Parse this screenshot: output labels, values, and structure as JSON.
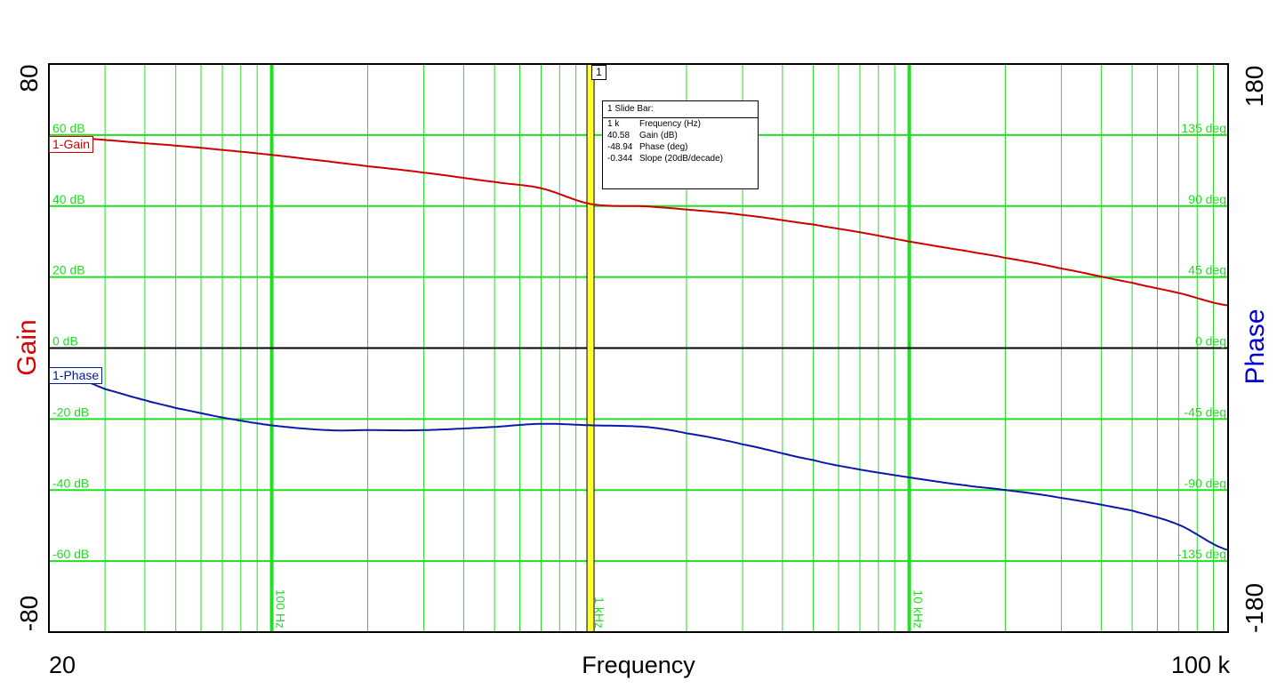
{
  "chart_data": {
    "type": "line",
    "xlabel": "Frequency",
    "x_scale": "log",
    "xlim": [
      20,
      100000
    ],
    "xlim_labels": [
      "20",
      "100 k"
    ],
    "x_decade_labels": [
      {
        "x": 100,
        "label": "100 Hz"
      },
      {
        "x": 1000,
        "label": "1 kHz"
      },
      {
        "x": 10000,
        "label": "10 kHz"
      }
    ],
    "left_axis": {
      "label": "Gain",
      "color": "#dd0000",
      "ylim": [
        -80,
        80
      ],
      "min_label": "-80",
      "max_label": "80",
      "ticks": [
        {
          "v": 60,
          "label": "60 dB"
        },
        {
          "v": 40,
          "label": "40 dB"
        },
        {
          "v": 20,
          "label": "20 dB"
        },
        {
          "v": 0,
          "label": "0 dB"
        },
        {
          "v": -20,
          "label": "-20 dB"
        },
        {
          "v": -40,
          "label": "-40 dB"
        },
        {
          "v": -60,
          "label": "-60 dB"
        }
      ]
    },
    "right_axis": {
      "label": "Phase",
      "color": "#0000cc",
      "ylim": [
        -180,
        180
      ],
      "min_label": "-180",
      "max_label": "180",
      "ticks": [
        {
          "v": 135,
          "label": "135 deg"
        },
        {
          "v": 90,
          "label": "90 deg"
        },
        {
          "v": 45,
          "label": "45 deg"
        },
        {
          "v": 0,
          "label": "0 deg"
        },
        {
          "v": -45,
          "label": "-45 deg"
        },
        {
          "v": -90,
          "label": "-90 deg"
        },
        {
          "v": -135,
          "label": "-135 deg"
        }
      ]
    },
    "grid": true,
    "series": [
      {
        "name": "1-Gain",
        "axis": "left",
        "color": "#cc0000",
        "x": [
          20,
          25,
          30,
          40,
          50,
          70,
          100,
          150,
          200,
          300,
          500,
          700,
          1000,
          1500,
          2000,
          3000,
          5000,
          7000,
          10000,
          15000,
          20000,
          30000,
          50000,
          70000,
          100000
        ],
        "y": [
          59.3,
          59.1,
          58.6,
          57.7,
          57.0,
          55.8,
          54.4,
          52.6,
          51.2,
          49.4,
          46.8,
          45.0,
          40.58,
          39.9,
          39.0,
          37.5,
          34.8,
          32.6,
          30.0,
          27.4,
          25.4,
          22.4,
          18.4,
          15.5,
          12.0
        ]
      },
      {
        "name": "1-Phase",
        "axis": "right",
        "color": "#0a1aa8",
        "x": [
          20,
          25,
          30,
          40,
          50,
          70,
          100,
          150,
          200,
          300,
          500,
          700,
          1000,
          1500,
          2000,
          3000,
          5000,
          7000,
          10000,
          15000,
          20000,
          30000,
          50000,
          70000,
          100000
        ],
        "y": [
          -18,
          -20,
          -26,
          -33,
          -38,
          -44,
          -49,
          -52,
          -52,
          -52,
          -50,
          -48,
          -48.94,
          -50,
          -54,
          -61,
          -71,
          -77,
          -82,
          -87,
          -90,
          -95,
          -103,
          -112,
          -128
        ]
      }
    ],
    "slide_bar": {
      "marker": "1",
      "x": 1000,
      "title": "1  Slide Bar:",
      "rows": [
        {
          "value": "1 k",
          "label": "Frequency (Hz)"
        },
        {
          "value": "40.58",
          "label": "Gain (dB)"
        },
        {
          "value": "-48.94",
          "label": "Phase (deg)"
        },
        {
          "value": "-0.344",
          "label": "Slope (20dB/decade)"
        }
      ]
    }
  }
}
